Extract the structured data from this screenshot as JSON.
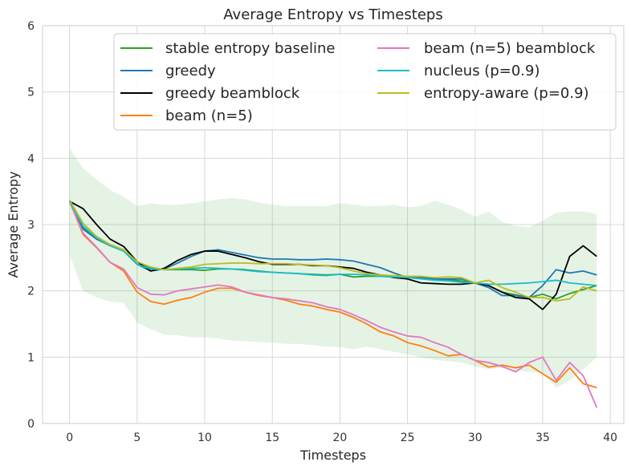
{
  "chart_data": {
    "type": "line",
    "title": "Average Entropy vs Timesteps",
    "xlabel": "Timesteps",
    "ylabel": "Average Entropy",
    "xlim": [
      -2,
      41
    ],
    "ylim": [
      0,
      6
    ],
    "xticks": [
      0,
      5,
      10,
      15,
      20,
      25,
      30,
      35,
      40
    ],
    "yticks": [
      0,
      1,
      2,
      3,
      4,
      5,
      6
    ],
    "grid": true,
    "legend_position": "top-right",
    "band": {
      "color": "#2ca02c",
      "x": [
        0,
        1,
        2,
        3,
        4,
        5,
        6,
        7,
        8,
        9,
        10,
        11,
        12,
        13,
        14,
        15,
        16,
        17,
        18,
        19,
        20,
        21,
        22,
        23,
        24,
        25,
        26,
        27,
        28,
        29,
        30,
        31,
        32,
        33,
        34,
        35,
        36,
        37,
        38,
        39
      ],
      "upper": [
        4.15,
        3.85,
        3.68,
        3.52,
        3.42,
        3.28,
        3.32,
        3.3,
        3.3,
        3.32,
        3.35,
        3.38,
        3.4,
        3.38,
        3.33,
        3.3,
        3.28,
        3.28,
        3.28,
        3.28,
        3.32,
        3.3,
        3.28,
        3.28,
        3.3,
        3.26,
        3.28,
        3.36,
        3.3,
        3.22,
        3.12,
        3.2,
        3.04,
        2.98,
        2.96,
        3.06,
        3.18,
        3.2,
        3.2,
        3.16
      ],
      "lower": [
        2.55,
        2.0,
        1.9,
        1.84,
        1.82,
        1.52,
        1.42,
        1.34,
        1.33,
        1.3,
        1.3,
        1.28,
        1.25,
        1.24,
        1.23,
        1.22,
        1.2,
        1.2,
        1.18,
        1.16,
        1.15,
        1.12,
        1.16,
        1.12,
        1.08,
        1.04,
        1.0,
        0.96,
        0.94,
        0.92,
        0.86,
        0.82,
        0.84,
        0.8,
        0.78,
        0.76,
        0.54,
        0.65,
        0.82,
        1.0
      ]
    },
    "x": [
      0,
      1,
      2,
      3,
      4,
      5,
      6,
      7,
      8,
      9,
      10,
      11,
      12,
      13,
      14,
      15,
      16,
      17,
      18,
      19,
      20,
      21,
      22,
      23,
      24,
      25,
      26,
      27,
      28,
      29,
      30,
      31,
      32,
      33,
      34,
      35,
      36,
      37,
      38,
      39
    ],
    "series": [
      {
        "name": "stable entropy baseline",
        "color": "#2ca02c",
        "values": [
          3.35,
          2.95,
          2.78,
          2.68,
          2.6,
          2.4,
          2.35,
          2.32,
          2.32,
          2.32,
          2.31,
          2.33,
          2.33,
          2.32,
          2.3,
          2.28,
          2.27,
          2.26,
          2.25,
          2.24,
          2.25,
          2.21,
          2.22,
          2.22,
          2.21,
          2.2,
          2.2,
          2.18,
          2.17,
          2.15,
          2.12,
          2.08,
          1.98,
          1.94,
          1.9,
          1.95,
          1.88,
          1.96,
          2.02,
          2.08
        ]
      },
      {
        "name": "greedy",
        "color": "#1f77b4",
        "values": [
          3.35,
          2.93,
          2.78,
          2.7,
          2.62,
          2.4,
          2.3,
          2.33,
          2.42,
          2.52,
          2.6,
          2.62,
          2.58,
          2.54,
          2.5,
          2.48,
          2.48,
          2.47,
          2.47,
          2.48,
          2.47,
          2.45,
          2.4,
          2.35,
          2.27,
          2.2,
          2.2,
          2.18,
          2.18,
          2.18,
          2.12,
          2.05,
          1.93,
          1.93,
          1.9,
          2.08,
          2.32,
          2.27,
          2.3,
          2.24
        ]
      },
      {
        "name": "greedy beamblock",
        "color": "#000000",
        "values": [
          3.35,
          3.24,
          3.0,
          2.78,
          2.67,
          2.44,
          2.3,
          2.34,
          2.46,
          2.55,
          2.6,
          2.6,
          2.55,
          2.5,
          2.44,
          2.4,
          2.4,
          2.4,
          2.38,
          2.38,
          2.36,
          2.34,
          2.28,
          2.24,
          2.2,
          2.18,
          2.12,
          2.11,
          2.1,
          2.1,
          2.12,
          2.08,
          1.98,
          1.9,
          1.88,
          1.72,
          1.95,
          2.52,
          2.68,
          2.52
        ]
      },
      {
        "name": "beam (n=5)",
        "color": "#ff7f0e",
        "values": [
          3.35,
          2.85,
          2.65,
          2.43,
          2.3,
          1.98,
          1.84,
          1.8,
          1.86,
          1.9,
          1.98,
          2.04,
          2.04,
          1.98,
          1.93,
          1.9,
          1.86,
          1.8,
          1.77,
          1.72,
          1.68,
          1.6,
          1.5,
          1.38,
          1.32,
          1.22,
          1.17,
          1.1,
          1.02,
          1.04,
          0.95,
          0.85,
          0.88,
          0.84,
          0.88,
          0.75,
          0.62,
          0.84,
          0.6,
          0.54
        ]
      },
      {
        "name": "beam (n=5) beamblock",
        "color": "#e377c2",
        "values": [
          3.35,
          2.87,
          2.66,
          2.43,
          2.33,
          2.05,
          1.95,
          1.94,
          2.0,
          2.03,
          2.06,
          2.09,
          2.06,
          1.98,
          1.94,
          1.9,
          1.88,
          1.85,
          1.82,
          1.76,
          1.72,
          1.64,
          1.55,
          1.45,
          1.38,
          1.32,
          1.3,
          1.22,
          1.15,
          1.04,
          0.95,
          0.92,
          0.86,
          0.78,
          0.92,
          1.0,
          0.65,
          0.92,
          0.72,
          0.24
        ]
      },
      {
        "name": "nucleus (p=0.9)",
        "color": "#17becf",
        "values": [
          3.35,
          2.98,
          2.8,
          2.68,
          2.6,
          2.4,
          2.33,
          2.32,
          2.33,
          2.34,
          2.35,
          2.34,
          2.33,
          2.31,
          2.29,
          2.28,
          2.27,
          2.26,
          2.24,
          2.23,
          2.25,
          2.25,
          2.24,
          2.22,
          2.21,
          2.2,
          2.18,
          2.16,
          2.15,
          2.13,
          2.12,
          2.1,
          2.1,
          2.11,
          2.12,
          2.14,
          2.16,
          2.12,
          2.1,
          2.08
        ]
      },
      {
        "name": "entropy-aware (p=0.9)",
        "color": "#bcbd22",
        "values": [
          3.37,
          3.02,
          2.82,
          2.7,
          2.62,
          2.44,
          2.36,
          2.32,
          2.34,
          2.36,
          2.4,
          2.41,
          2.42,
          2.42,
          2.41,
          2.41,
          2.41,
          2.4,
          2.39,
          2.38,
          2.35,
          2.3,
          2.26,
          2.24,
          2.23,
          2.22,
          2.22,
          2.2,
          2.21,
          2.2,
          2.12,
          2.16,
          2.05,
          1.98,
          1.9,
          1.9,
          1.85,
          1.88,
          2.06,
          2.0
        ]
      }
    ]
  }
}
